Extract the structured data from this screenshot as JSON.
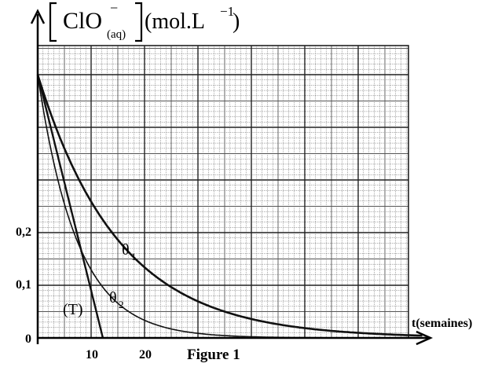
{
  "chart_data": {
    "type": "line",
    "y_axis_label": {
      "species_main": "ClO",
      "species_sup": "−",
      "species_sub": "(aq)",
      "unit": "(mol.L",
      "unit_sup": "−1",
      "unit_close": ")"
    },
    "x_axis_label": "t(semaines)",
    "caption": "Figure 1",
    "x_tick_labels": [
      "0",
      "10",
      "20"
    ],
    "y_tick_labels": [
      "0,1",
      "0,2"
    ],
    "xlim": [
      0,
      72
    ],
    "ylim": [
      0,
      0.51
    ],
    "grid": true,
    "series": [
      {
        "name": "θ1",
        "label_main": "θ",
        "label_sub": "1",
        "x0": 0,
        "y0": 0.5,
        "tau": 15.2
      },
      {
        "name": "θ2",
        "label_main": "θ",
        "label_sub": "2",
        "x0": 0,
        "y0": 0.5,
        "tau": 7.4
      }
    ],
    "tangent": {
      "name": "(T)",
      "from": [
        0,
        0.5
      ],
      "to": [
        12.2,
        0
      ]
    }
  },
  "colors": {
    "grid": "#555555",
    "curve": "#111111",
    "background": "#ffffff"
  }
}
